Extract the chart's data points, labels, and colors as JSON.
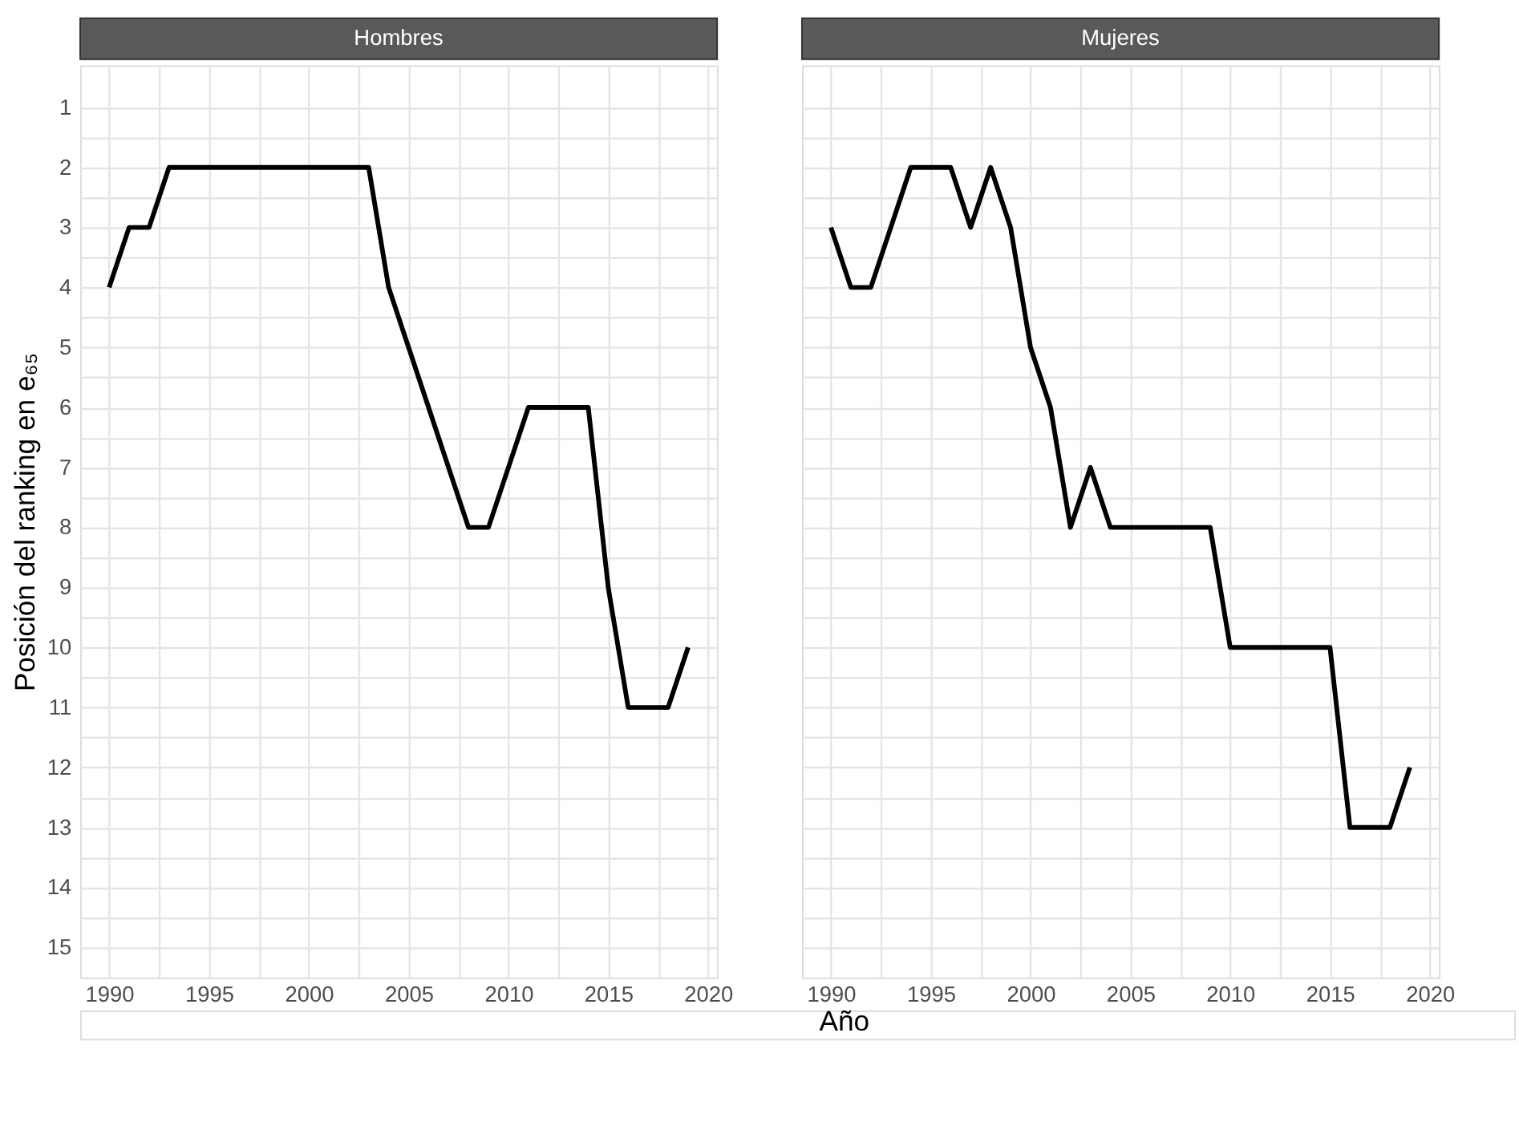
{
  "chart_data": [
    {
      "type": "line",
      "title": "Hombres",
      "xlabel": "Año",
      "ylabel": "Posición del ranking en e₆₅",
      "x": [
        1990,
        1991,
        1992,
        1993,
        1994,
        1995,
        1996,
        1997,
        1998,
        1999,
        2000,
        2001,
        2002,
        2003,
        2004,
        2005,
        2006,
        2007,
        2008,
        2009,
        2010,
        2011,
        2012,
        2013,
        2014,
        2015,
        2016,
        2017,
        2018,
        2019
      ],
      "series": [
        {
          "color": "#000000",
          "values": [
            4,
            3,
            3,
            2,
            2,
            2,
            2,
            2,
            2,
            2,
            2,
            2,
            2,
            2,
            4,
            5,
            6,
            7,
            8,
            8,
            7,
            6,
            6,
            6,
            6,
            9,
            11,
            11,
            11,
            10
          ]
        }
      ],
      "xlim": [
        1988.55,
        2020.45
      ],
      "ylim": [
        15.5,
        0.3
      ],
      "xticks": [
        1990,
        {
          "value": 1992.5,
          "label": null
        },
        1995,
        {
          "value": 1997.5,
          "label": null
        },
        2000,
        {
          "value": 2002.5,
          "label": null
        },
        2005,
        {
          "value": 2007.5,
          "label": null
        },
        2010,
        {
          "value": 2012.5,
          "label": null
        },
        2015,
        {
          "value": 2017.5,
          "label": null
        },
        2020
      ],
      "yticks": [
        1,
        {
          "value": 1.5,
          "label": null
        },
        2,
        {
          "value": 2.5,
          "label": null
        },
        3,
        {
          "value": 3.5,
          "label": null
        },
        4,
        {
          "value": 4.5,
          "label": null
        },
        5,
        {
          "value": 5.5,
          "label": null
        },
        6,
        {
          "value": 6.5,
          "label": null
        },
        7,
        {
          "value": 7.5,
          "label": null
        },
        8,
        {
          "value": 8.5,
          "label": null
        },
        9,
        {
          "value": 9.5,
          "label": null
        },
        10,
        {
          "value": 10.5,
          "label": null
        },
        11,
        {
          "value": 11.5,
          "label": null
        },
        12,
        {
          "value": 12.5,
          "label": null
        },
        13,
        {
          "value": 13.5,
          "label": null
        },
        14,
        {
          "value": 14.5,
          "label": null
        },
        15
      ],
      "grid": true,
      "marker": "none",
      "line_style": "solid"
    },
    {
      "type": "line",
      "title": "Mujeres",
      "x": [
        1990,
        1991,
        1992,
        1993,
        1994,
        1995,
        1996,
        1997,
        1998,
        1999,
        2000,
        2001,
        2002,
        2003,
        2004,
        2005,
        2006,
        2007,
        2008,
        2009,
        2010,
        2011,
        2012,
        2013,
        2014,
        2015,
        2016,
        2017,
        2018,
        2019
      ],
      "series": [
        {
          "color": "#000000",
          "values": [
            3,
            4,
            4,
            3,
            2,
            2,
            2,
            3,
            2,
            3,
            5,
            6,
            8,
            7,
            8,
            8,
            8,
            8,
            8,
            8,
            10,
            10,
            10,
            10,
            10,
            10,
            13,
            13,
            13,
            12
          ]
        }
      ],
      "xlim": [
        1988.55,
        2020.45
      ],
      "ylim": [
        15.5,
        0.3
      ],
      "xticks": [
        1990,
        {
          "value": 1992.5,
          "label": null
        },
        1995,
        {
          "value": 1997.5,
          "label": null
        },
        2000,
        {
          "value": 2002.5,
          "label": null
        },
        2005,
        {
          "value": 2007.5,
          "label": null
        },
        2010,
        {
          "value": 2012.5,
          "label": null
        },
        2015,
        {
          "value": 2017.5,
          "label": null
        },
        2020
      ],
      "yticks": [
        1,
        {
          "value": 1.5,
          "label": null
        },
        2,
        {
          "value": 2.5,
          "label": null
        },
        3,
        {
          "value": 3.5,
          "label": null
        },
        4,
        {
          "value": 4.5,
          "label": null
        },
        5,
        {
          "value": 5.5,
          "label": null
        },
        6,
        {
          "value": 6.5,
          "label": null
        },
        7,
        {
          "value": 7.5,
          "label": null
        },
        8,
        {
          "value": 8.5,
          "label": null
        },
        9,
        {
          "value": 9.5,
          "label": null
        },
        10,
        {
          "value": 10.5,
          "label": null
        },
        11,
        {
          "value": 11.5,
          "label": null
        },
        12,
        {
          "value": 12.5,
          "label": null
        },
        13,
        {
          "value": 13.5,
          "label": null
        },
        14,
        {
          "value": 14.5,
          "label": null
        },
        15
      ],
      "grid": true,
      "marker": "none",
      "line_style": "solid",
      "tick_labels": "x"
    }
  ]
}
